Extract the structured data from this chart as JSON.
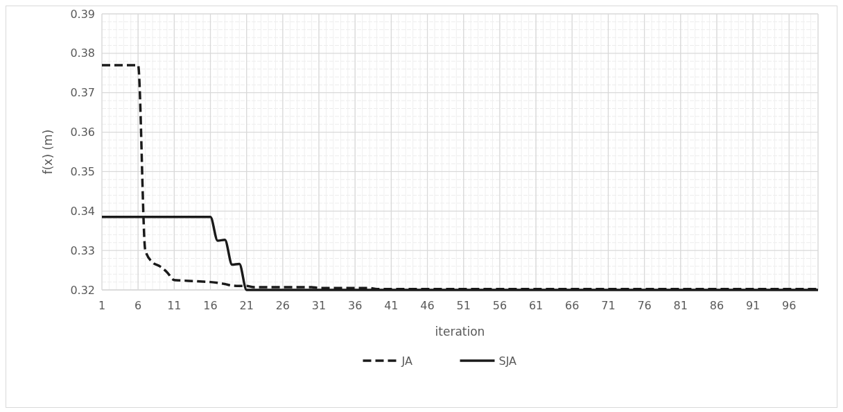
{
  "chart_data": {
    "type": "line",
    "xlabel": "iteration",
    "ylabel": "f(x) (m)",
    "x": [
      1,
      2,
      3,
      4,
      5,
      6,
      7,
      8,
      9,
      10,
      11,
      12,
      13,
      14,
      15,
      16,
      17,
      18,
      19,
      20,
      21,
      22,
      23,
      24,
      25,
      26,
      27,
      28,
      29,
      30,
      31,
      32,
      33,
      34,
      35,
      36,
      37,
      38,
      39,
      40,
      41,
      42,
      43,
      44,
      45,
      46,
      47,
      48,
      49,
      50,
      51,
      52,
      53,
      54,
      55,
      56,
      57,
      58,
      59,
      60,
      61,
      62,
      63,
      64,
      65,
      66,
      67,
      68,
      69,
      70,
      71,
      72,
      73,
      74,
      75,
      76,
      77,
      78,
      79,
      80,
      81,
      82,
      83,
      84,
      85,
      86,
      87,
      88,
      89,
      90,
      91,
      92,
      93,
      94,
      95,
      96,
      97,
      98,
      99,
      100
    ],
    "xlim": [
      1,
      100
    ],
    "xticks": [
      1,
      6,
      11,
      16,
      21,
      26,
      31,
      36,
      41,
      46,
      51,
      56,
      61,
      66,
      71,
      76,
      81,
      86,
      91,
      96
    ],
    "ylim": [
      0.32,
      0.39
    ],
    "yticks": [
      0.32,
      0.33,
      0.34,
      0.35,
      0.36,
      0.37,
      0.38,
      0.39
    ],
    "grid": true,
    "legend": "bottom",
    "marker": "none",
    "series": [
      {
        "name": "JA",
        "color": "#1a1a1a",
        "line_style": "dashed",
        "values": [
          0.377,
          0.377,
          0.377,
          0.377,
          0.377,
          0.377,
          0.33,
          0.327,
          0.326,
          0.3245,
          0.3225,
          0.3224,
          0.3223,
          0.3222,
          0.3221,
          0.322,
          0.3218,
          0.3215,
          0.3211,
          0.321,
          0.321,
          0.3207,
          0.3207,
          0.3207,
          0.3207,
          0.3207,
          0.3207,
          0.3207,
          0.3207,
          0.3207,
          0.3205,
          0.3205,
          0.3205,
          0.3205,
          0.3205,
          0.3205,
          0.3205,
          0.3205,
          0.3202,
          0.3202,
          0.3202,
          0.3202,
          0.3202,
          0.3202,
          0.3202,
          0.3202,
          0.3202,
          0.3202,
          0.3202,
          0.3202,
          0.3202,
          0.3202,
          0.3202,
          0.3202,
          0.3202,
          0.3202,
          0.3202,
          0.3202,
          0.3202,
          0.3202,
          0.3202,
          0.3202,
          0.3202,
          0.3202,
          0.3202,
          0.3202,
          0.3202,
          0.3202,
          0.3202,
          0.3202,
          0.3202,
          0.3202,
          0.3202,
          0.3202,
          0.3202,
          0.3202,
          0.3202,
          0.3202,
          0.3202,
          0.3202,
          0.3202,
          0.3202,
          0.3202,
          0.3202,
          0.3202,
          0.3202,
          0.3202,
          0.3202,
          0.3202,
          0.3202,
          0.3202,
          0.3202,
          0.3202,
          0.3202,
          0.3202,
          0.3202,
          0.3202,
          0.3202,
          0.3202,
          0.3202
        ]
      },
      {
        "name": "SJA",
        "color": "#1a1a1a",
        "line_style": "solid",
        "values": [
          0.3385,
          0.3385,
          0.3385,
          0.3385,
          0.3385,
          0.3385,
          0.3385,
          0.3385,
          0.3385,
          0.3385,
          0.3385,
          0.3385,
          0.3385,
          0.3385,
          0.3385,
          0.3385,
          0.3325,
          0.3327,
          0.3264,
          0.3266,
          0.32,
          0.32,
          0.32,
          0.32,
          0.32,
          0.32,
          0.32,
          0.32,
          0.32,
          0.32,
          0.32,
          0.32,
          0.32,
          0.32,
          0.32,
          0.32,
          0.32,
          0.32,
          0.32,
          0.32,
          0.32,
          0.32,
          0.32,
          0.32,
          0.32,
          0.32,
          0.32,
          0.32,
          0.32,
          0.32,
          0.32,
          0.32,
          0.32,
          0.32,
          0.32,
          0.32,
          0.32,
          0.32,
          0.32,
          0.32,
          0.32,
          0.32,
          0.32,
          0.32,
          0.32,
          0.32,
          0.32,
          0.32,
          0.32,
          0.32,
          0.32,
          0.32,
          0.32,
          0.32,
          0.32,
          0.32,
          0.32,
          0.32,
          0.32,
          0.32,
          0.32,
          0.32,
          0.32,
          0.32,
          0.32,
          0.32,
          0.32,
          0.32,
          0.32,
          0.32,
          0.32,
          0.32,
          0.32,
          0.32,
          0.32,
          0.32,
          0.32,
          0.32,
          0.32,
          0.32
        ]
      }
    ]
  }
}
